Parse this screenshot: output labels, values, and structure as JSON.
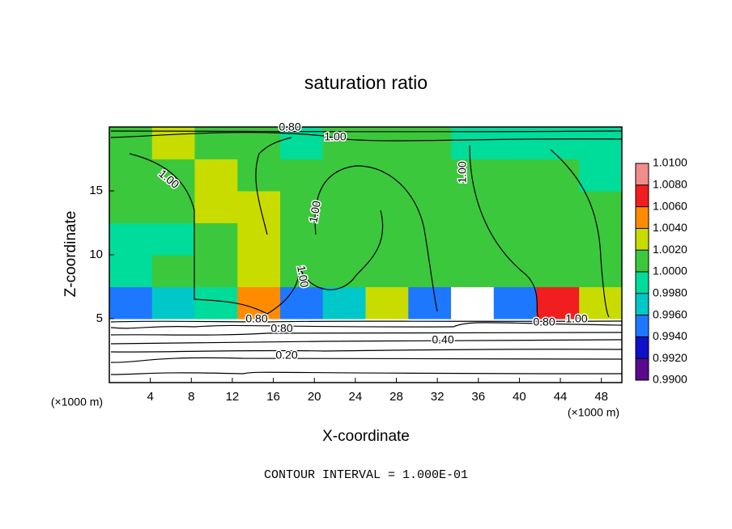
{
  "chart_data": {
    "type": "heatmap",
    "title": "saturation ratio",
    "x_label": "X-coordinate",
    "y_label": "Z-coordinate",
    "x_unit": "(×1000 m)",
    "y_unit": "(×1000 m)",
    "footer": "CONTOUR INTERVAL = 1.000E-01",
    "xlim": [
      0,
      50
    ],
    "xticks": [
      4,
      8,
      12,
      16,
      20,
      24,
      28,
      32,
      36,
      40,
      44,
      48
    ],
    "ylim": [
      0,
      20
    ],
    "yticks": [
      5,
      10,
      15
    ],
    "z": [
      [
        0.2,
        0.2,
        0.2,
        0.2,
        0.2,
        0.2,
        0.2,
        0.2,
        0.2,
        0.2,
        0.2,
        0.2
      ],
      [
        0.6,
        0.6,
        0.6,
        0.6,
        0.6,
        0.6,
        0.6,
        0.6,
        0.6,
        0.6,
        0.6,
        0.6
      ],
      [
        0.994,
        0.996,
        0.998,
        1.004,
        0.994,
        0.997,
        1.002,
        0.995,
        0.9,
        0.994,
        1.006,
        1.003
      ],
      [
        0.999,
        1.0,
        1.001,
        1.002,
        1.0,
        1.0,
        1.001,
        1.0,
        1.0,
        1.0,
        1.001,
        1.0
      ],
      [
        0.999,
        0.999,
        1.001,
        1.002,
        1.0,
        1.0,
        1.001,
        1.0,
        1.0,
        1.0,
        1.0,
        1.0
      ],
      [
        1.0,
        1.0,
        1.002,
        1.002,
        1.0,
        1.0,
        1.001,
        1.001,
        1.0,
        1.0,
        1.0,
        1.0
      ],
      [
        1.0,
        1.001,
        1.002,
        1.001,
        1.0,
        1.0,
        1.0,
        1.0,
        1.0,
        1.0,
        1.0,
        0.999
      ],
      [
        1.0,
        1.003,
        1.001,
        1.0,
        0.998,
        1.0,
        1.0,
        1.0,
        0.998,
        0.999,
        0.999,
        0.998
      ]
    ],
    "colorbar_ticks": [
      {
        "value": 0.99,
        "label": "0.9900"
      },
      {
        "value": 0.992,
        "label": "0.9920"
      },
      {
        "value": 0.994,
        "label": "0.9940"
      },
      {
        "value": 0.996,
        "label": "0.9960"
      },
      {
        "value": 0.998,
        "label": "0.9980"
      },
      {
        "value": 1.0,
        "label": "1.0000"
      },
      {
        "value": 1.002,
        "label": "1.0020"
      },
      {
        "value": 1.004,
        "label": "1.0040"
      },
      {
        "value": 1.006,
        "label": "1.0060"
      },
      {
        "value": 1.008,
        "label": "1.0080"
      },
      {
        "value": 1.01,
        "label": "1.0100"
      }
    ],
    "colorbar_colors": [
      "#5a0a8c",
      "#1010c8",
      "#1e78ff",
      "#00c8c8",
      "#00dc9a",
      "#3cc83c",
      "#c8dc00",
      "#ff8c00",
      "#f01e1e",
      "#f08c8c"
    ],
    "contour_labels": [
      "0.80",
      "1.00",
      "1.00",
      "1.00",
      "1.00",
      "1.00",
      "0.80",
      "0.80",
      "0.40",
      "0.80",
      "1.00",
      "0.20"
    ]
  }
}
